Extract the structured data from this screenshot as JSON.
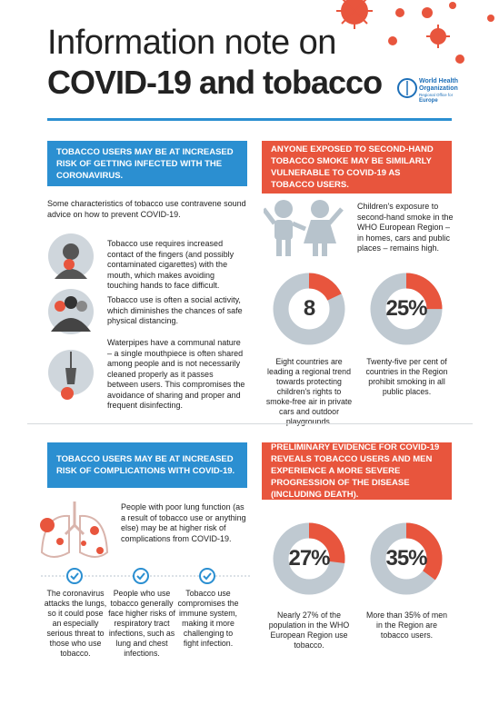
{
  "header": {
    "title_line1": "Information note on",
    "title_line2": "COVID-19 and tobacco",
    "org_line1": "World Health",
    "org_line2": "Organization",
    "office": "Regional Office for",
    "region": "Europe"
  },
  "sections": [
    {
      "banner": "TOBACCO USERS MAY BE AT INCREASED RISK OF GETTING INFECTED WITH THE CORONAVIRUS.",
      "intro": "Some characteristics of tobacco use contravene sound advice on how to prevent COVID-19.",
      "items": [
        "Tobacco use requires increased contact of the fingers (and possibly contaminated cigarettes) with the mouth, which makes avoiding touching hands to face difficult.",
        "Tobacco use is often a social activity, which diminishes the chances of safe physical distancing.",
        "Waterpipes have a communal nature – a single mouthpiece is often shared among people and is not necessarily cleaned properly as it passes between users. This compromises the avoidance of sharing and proper and frequent disinfecting."
      ]
    },
    {
      "banner": "ANYONE EXPOSED TO SECOND-HAND TOBACCO SMOKE MAY BE SIMILARLY VULNERABLE TO COVID-19 AS TOBACCO USERS.",
      "intro": "Children's exposure to second-hand smoke in the WHO European Region – in homes, cars and public places – remains high.",
      "stats": [
        {
          "value": 8,
          "label": "8",
          "text": "Eight countries are leading a regional trend towards protecting children's rights to smoke-free air in private cars and outdoor playgrounds."
        },
        {
          "value": 25,
          "label": "25%",
          "text": "Twenty-five per cent of countries in the Region prohibit smoking in all public places."
        }
      ]
    },
    {
      "banner": "TOBACCO USERS MAY BE AT INCREASED RISK OF COMPLICATIONS WITH COVID-19.",
      "intro": "People with poor lung function (as a result of tobacco use or anything else) may be at higher risk of complications from COVID-19.",
      "items": [
        "The coronavirus attacks the lungs, so it could pose an especially serious threat to those who use tobacco.",
        "People who use tobacco generally face higher risks of respiratory tract infections, such as lung and chest infections.",
        "Tobacco use compromises the immune system, making it more challenging to fight infection."
      ]
    },
    {
      "banner": "PRELIMINARY EVIDENCE FOR COVID-19 REVEALS TOBACCO USERS AND MEN EXPERIENCE A MORE SEVERE PROGRESSION OF THE DISEASE (INCLUDING DEATH).",
      "stats": [
        {
          "value": 27,
          "label": "27%",
          "text": "Nearly 27% of the population in the WHO European Region use tobacco."
        },
        {
          "value": 35,
          "label": "35%",
          "text": "More than 35% of men in the Region are tobacco users."
        }
      ]
    }
  ]
}
